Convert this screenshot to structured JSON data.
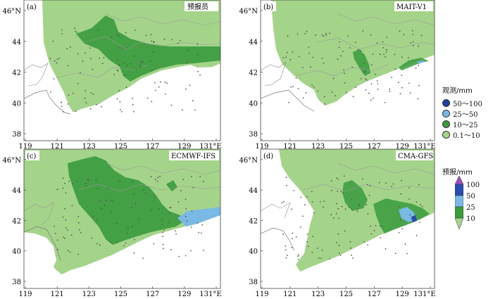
{
  "panels": [
    {
      "letter": "(a)",
      "title": "预报员"
    },
    {
      "letter": "(b)",
      "title": "MAIT-V1"
    },
    {
      "letter": "(c)",
      "title": "ECMWF-IFS"
    },
    {
      "letter": "(d)",
      "title": "CMA-GFS"
    }
  ],
  "axes": {
    "y_ticks": [
      "38",
      "40",
      "42",
      "44",
      "46°N"
    ],
    "x_ticks": [
      "119",
      "121",
      "123",
      "125",
      "127",
      "129",
      "131°E"
    ]
  },
  "observed_legend": {
    "title": "观测/mm",
    "items": [
      {
        "label": "50～100",
        "color": "#1f3fa0"
      },
      {
        "label": "25～50",
        "color": "#7ab8e6"
      },
      {
        "label": "10～25",
        "color": "#3a9a3c"
      },
      {
        "label": "0.1～10",
        "color": "#a4d38a"
      }
    ]
  },
  "forecast_legend": {
    "title": "预报/mm",
    "labels": [
      "100",
      "50",
      "25",
      "10"
    ],
    "colors": [
      "#a04cc0",
      "#2a4cb0",
      "#7ab8e6",
      "#3a9a3c",
      "#a4d38a"
    ]
  }
}
